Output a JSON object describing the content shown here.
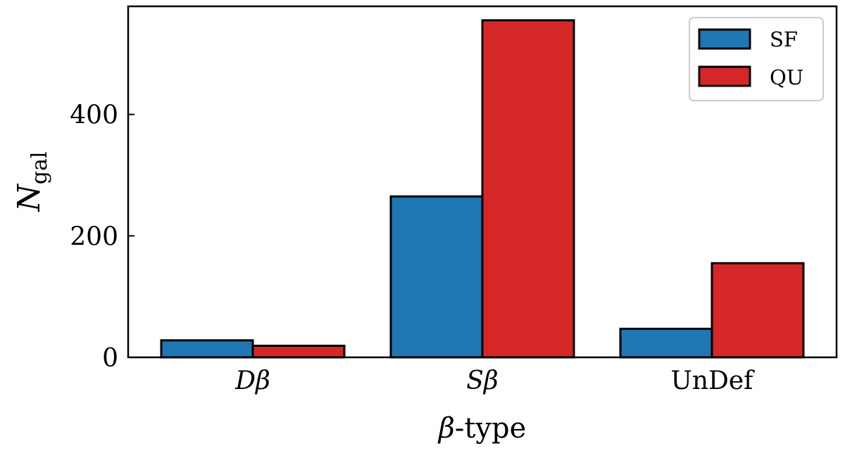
{
  "chart_data": {
    "type": "bar",
    "title": "",
    "categories": [
      "Dβ",
      "Sβ",
      "UnDef"
    ],
    "category_styles": [
      "italic",
      "italic",
      "normal"
    ],
    "series": [
      {
        "name": "SF",
        "values": [
          28,
          265,
          47
        ],
        "color": "#1f77b4"
      },
      {
        "name": "QU",
        "values": [
          19,
          555,
          155
        ],
        "color": "#d62728"
      }
    ],
    "xlabel": {
      "prefix": "β",
      "suffix": "-type"
    },
    "ylabel": {
      "main": "N",
      "sub": "gal"
    },
    "ylim": [
      0,
      578
    ],
    "yticks": [
      0,
      200,
      400
    ],
    "grid": false,
    "legend_position": "top-right"
  }
}
